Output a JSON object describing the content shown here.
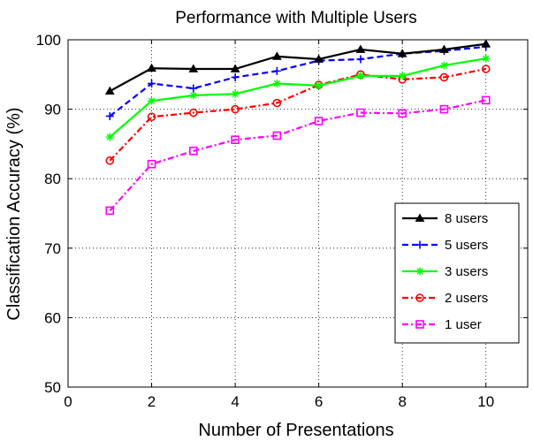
{
  "chart_data": {
    "type": "line",
    "title": "Performance with Multiple Users",
    "xlabel": "Number of Presentations",
    "ylabel": "Classification Accuracy (%)",
    "xlim": [
      0,
      11
    ],
    "ylim": [
      50,
      100
    ],
    "xticks": [
      0,
      2,
      4,
      6,
      8,
      10
    ],
    "yticks": [
      50,
      60,
      70,
      80,
      90,
      100
    ],
    "grid": true,
    "legend_position": "lower-right",
    "x": [
      1,
      2,
      3,
      4,
      5,
      6,
      7,
      8,
      9,
      10
    ],
    "series": [
      {
        "name": "8 users",
        "color": "#000000",
        "dash": "solid",
        "marker": "triangle",
        "values": [
          92.6,
          95.9,
          95.8,
          95.8,
          97.6,
          97.2,
          98.6,
          98.0,
          98.6,
          99.4
        ]
      },
      {
        "name": "5 users",
        "color": "#0000ff",
        "dash": "dashed",
        "marker": "plus",
        "values": [
          89.0,
          93.7,
          93.0,
          94.6,
          95.5,
          97.0,
          97.2,
          98.0,
          98.4,
          99.0
        ]
      },
      {
        "name": "3 users",
        "color": "#00ff00",
        "dash": "solid",
        "marker": "star",
        "values": [
          86.0,
          91.2,
          92.0,
          92.2,
          93.7,
          93.4,
          94.8,
          94.8,
          96.3,
          97.3
        ]
      },
      {
        "name": "2 users",
        "color": "#ff0000",
        "dash": "dashdot",
        "marker": "circle",
        "values": [
          82.6,
          88.9,
          89.5,
          90.0,
          90.9,
          93.5,
          95.0,
          94.3,
          94.6,
          95.8
        ]
      },
      {
        "name": "1 user",
        "color": "#ff00ff",
        "dash": "dashdot",
        "marker": "square",
        "values": [
          75.4,
          82.1,
          84.0,
          85.6,
          86.2,
          88.3,
          89.5,
          89.4,
          90.0,
          91.3
        ]
      }
    ]
  }
}
